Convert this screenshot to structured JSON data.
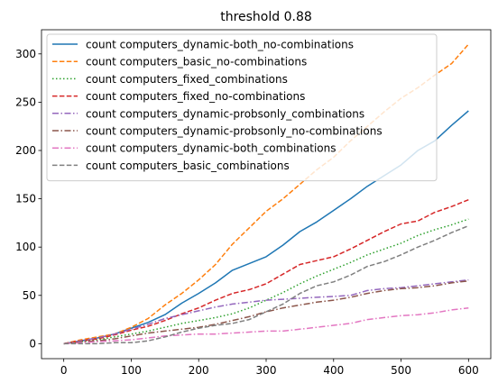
{
  "chart_data": {
    "type": "line",
    "title": "threshold 0.88",
    "xlabel": "",
    "ylabel": "",
    "xlim": [
      -33,
      633
    ],
    "ylim": [
      -15.5,
      325
    ],
    "xticks": [
      0,
      100,
      200,
      300,
      400,
      500,
      600
    ],
    "yticks": [
      0,
      50,
      100,
      150,
      200,
      250,
      300
    ],
    "grid": false,
    "legend_position": "upper-left",
    "series": [
      {
        "name": "count computers_dynamic-both_no-combinations",
        "color": "#1f77b4",
        "dash": "solid",
        "x": [
          0,
          25,
          50,
          75,
          100,
          125,
          150,
          175,
          200,
          225,
          250,
          275,
          300,
          325,
          350,
          375,
          400,
          425,
          450,
          475,
          500,
          525,
          550,
          575,
          600
        ],
        "y": [
          0,
          3,
          6,
          10,
          16,
          22,
          30,
          42,
          52,
          63,
          76,
          83,
          90,
          102,
          116,
          126,
          138,
          150,
          163,
          174,
          185,
          200,
          210,
          226,
          241
        ]
      },
      {
        "name": "count computers_basic_no-combinations",
        "color": "#ff7f0e",
        "dash": "dashed",
        "x": [
          0,
          25,
          50,
          75,
          100,
          125,
          150,
          175,
          200,
          225,
          250,
          275,
          300,
          325,
          350,
          375,
          400,
          425,
          450,
          475,
          500,
          525,
          550,
          575,
          600
        ],
        "y": [
          0,
          4,
          7,
          10,
          17,
          26,
          40,
          52,
          66,
          82,
          103,
          120,
          137,
          150,
          165,
          180,
          193,
          210,
          225,
          240,
          254,
          265,
          278,
          290,
          310
        ]
      },
      {
        "name": "count computers_fixed_combinations",
        "color": "#2ca02c",
        "dash": "dotted",
        "x": [
          0,
          25,
          50,
          75,
          100,
          125,
          150,
          175,
          200,
          225,
          250,
          275,
          300,
          325,
          350,
          375,
          400,
          425,
          450,
          475,
          500,
          525,
          550,
          575,
          600
        ],
        "y": [
          0,
          2,
          4,
          7,
          10,
          13,
          17,
          21,
          24,
          27,
          31,
          37,
          45,
          53,
          62,
          70,
          77,
          84,
          92,
          98,
          104,
          112,
          118,
          123,
          129
        ]
      },
      {
        "name": "count computers_fixed_no-combinations",
        "color": "#d62728",
        "dash": "dashed",
        "x": [
          0,
          25,
          50,
          75,
          100,
          125,
          150,
          175,
          200,
          225,
          250,
          275,
          300,
          325,
          350,
          375,
          400,
          425,
          450,
          475,
          500,
          525,
          550,
          575,
          600
        ],
        "y": [
          0,
          3,
          5,
          9,
          14,
          18,
          24,
          31,
          37,
          45,
          52,
          56,
          62,
          72,
          82,
          86,
          90,
          98,
          107,
          116,
          124,
          127,
          136,
          142,
          149
        ]
      },
      {
        "name": "count computers_dynamic-probsonly_combinations",
        "color": "#9467bd",
        "dash": "dashdot",
        "x": [
          0,
          25,
          50,
          75,
          100,
          125,
          150,
          175,
          200,
          225,
          250,
          275,
          300,
          325,
          350,
          375,
          400,
          425,
          450,
          475,
          500,
          525,
          550,
          575,
          600
        ],
        "y": [
          0,
          3,
          6,
          10,
          15,
          20,
          26,
          30,
          34,
          38,
          41,
          43,
          45,
          46,
          47,
          48,
          49,
          50,
          55,
          57,
          58,
          60,
          62,
          64,
          66
        ]
      },
      {
        "name": "count computers_dynamic-probsonly_no-combinations",
        "color": "#8c564b",
        "dash": "dashdot",
        "x": [
          0,
          25,
          50,
          75,
          100,
          125,
          150,
          175,
          200,
          225,
          250,
          275,
          300,
          325,
          350,
          375,
          400,
          425,
          450,
          475,
          500,
          525,
          550,
          575,
          600
        ],
        "y": [
          0,
          2,
          3,
          5,
          8,
          11,
          13,
          15,
          17,
          20,
          24,
          28,
          33,
          37,
          40,
          43,
          45,
          48,
          52,
          55,
          57,
          58,
          60,
          63,
          65
        ]
      },
      {
        "name": "count computers_dynamic-both_combinations",
        "color": "#e377c2",
        "dash": "dashdot",
        "x": [
          0,
          25,
          50,
          75,
          100,
          125,
          150,
          175,
          200,
          225,
          250,
          275,
          300,
          325,
          350,
          375,
          400,
          425,
          450,
          475,
          500,
          525,
          550,
          575,
          600
        ],
        "y": [
          0,
          1,
          2,
          3,
          4,
          6,
          8,
          9,
          10,
          10,
          11,
          12,
          13,
          13,
          15,
          17,
          19,
          21,
          25,
          27,
          29,
          30,
          32,
          35,
          37
        ]
      },
      {
        "name": "count computers_basic_combinations",
        "color": "#7f7f7f",
        "dash": "dashed",
        "x": [
          0,
          25,
          50,
          75,
          100,
          125,
          150,
          175,
          200,
          225,
          250,
          275,
          300,
          325,
          350,
          375,
          400,
          425,
          450,
          475,
          500,
          525,
          550,
          575,
          600
        ],
        "y": [
          0,
          0,
          0,
          1,
          1,
          3,
          7,
          12,
          16,
          19,
          21,
          25,
          33,
          41,
          52,
          60,
          64,
          71,
          80,
          85,
          92,
          100,
          107,
          115,
          122
        ]
      }
    ]
  }
}
